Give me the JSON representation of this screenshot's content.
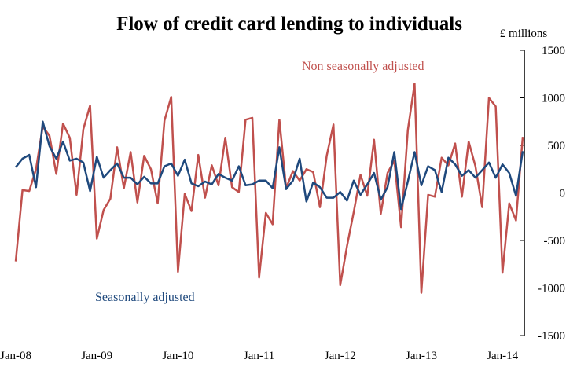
{
  "chart_data": {
    "type": "line",
    "title": "Flow of credit card lending to individuals",
    "ylabel": "£ millions",
    "ylim": [
      -1500,
      1500
    ],
    "yticks": [
      1500,
      1000,
      500,
      0,
      -500,
      -1000,
      -1500
    ],
    "yticks_labels": [
      "1500",
      "1000",
      "500",
      "0",
      "-500",
      "-1000",
      "-1500"
    ],
    "xtick_labels": [
      "Jan-08",
      "Jan-09",
      "Jan-10",
      "Jan-11",
      "Jan-12",
      "Jan-13",
      "Jan-14"
    ],
    "x_start": "Jan-08",
    "x_end": "Apr-14",
    "frequency": "monthly",
    "grid": false,
    "axis_side": "right",
    "series": [
      {
        "name": "Non seasonally adjusted",
        "color": "#c0504d",
        "values": [
          -720,
          30,
          20,
          250,
          700,
          600,
          200,
          730,
          580,
          -20,
          670,
          920,
          -480,
          -180,
          -60,
          480,
          50,
          430,
          -100,
          390,
          250,
          -110,
          760,
          1010,
          -830,
          -10,
          -190,
          400,
          -50,
          290,
          80,
          580,
          60,
          10,
          770,
          790,
          -890,
          -210,
          -330,
          770,
          50,
          230,
          130,
          250,
          220,
          -150,
          390,
          720,
          -970,
          -560,
          -200,
          190,
          -30,
          560,
          -220,
          210,
          340,
          -360,
          660,
          1150,
          -1050,
          -20,
          -40,
          370,
          290,
          520,
          -40,
          540,
          280,
          -150,
          1000,
          910,
          -840,
          -110,
          -290,
          590
        ]
      },
      {
        "name": "Seasonally adjusted",
        "color": "#1f497d",
        "values": [
          270,
          360,
          400,
          60,
          750,
          490,
          360,
          540,
          340,
          360,
          320,
          20,
          380,
          160,
          240,
          310,
          160,
          160,
          90,
          170,
          100,
          100,
          280,
          310,
          180,
          350,
          100,
          70,
          120,
          90,
          200,
          160,
          130,
          280,
          80,
          90,
          130,
          130,
          50,
          480,
          40,
          130,
          360,
          -90,
          110,
          60,
          -50,
          -50,
          10,
          -80,
          130,
          -20,
          90,
          210,
          -70,
          60,
          430,
          -170,
          120,
          430,
          80,
          280,
          240,
          10,
          370,
          300,
          180,
          240,
          160,
          240,
          320,
          160,
          300,
          210,
          -30,
          440
        ]
      }
    ]
  }
}
